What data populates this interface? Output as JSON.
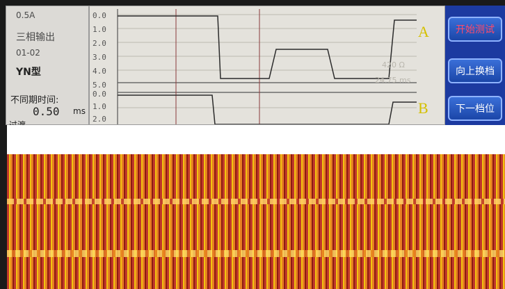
{
  "left_panel": {
    "current": "0.5A",
    "mode": "三相输出",
    "range": "01-02",
    "winding": "YN型",
    "async_label": "不同期时间:",
    "async_value": "0.50",
    "async_unit": "ms",
    "overshoot_label": "过渡"
  },
  "graph": {
    "top_ticks": [
      "0.0",
      "1.0",
      "2.0",
      "3.0",
      "4.0",
      "5.0"
    ],
    "bottom_ticks": [
      "0.0",
      "1.0",
      "2.0"
    ],
    "channel_a": "A",
    "channel_b": "B",
    "resistance": "420 Ω",
    "time": "24.75 ms"
  },
  "buttons": {
    "start": "开始测试",
    "up": "向上换档",
    "down": "下一档位"
  },
  "colors": {
    "button_bg": "#1b46a8",
    "button_border": "#8fb3ff",
    "start_text": "#ff4a6a",
    "channel_label": "#d4c000"
  }
}
